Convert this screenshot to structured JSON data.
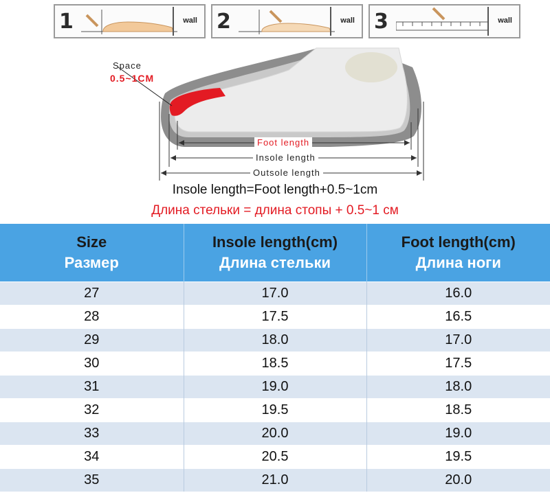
{
  "steps": [
    {
      "number": "1",
      "wall_label": "wall"
    },
    {
      "number": "2",
      "wall_label": "wall"
    },
    {
      "number": "3",
      "wall_label": "wall"
    }
  ],
  "diagram": {
    "space_label": "Space",
    "space_value": "0.5~1CM",
    "foot_length_label": "Foot length",
    "insole_length_label": "Insole length",
    "outsole_length_label": "Outsole length"
  },
  "formula": {
    "english": "Insole length=Foot length+0.5~1cm",
    "russian": "Длина стельки = длина стопы + 0.5~1 см"
  },
  "table": {
    "headers": [
      {
        "en": "Size",
        "ru": "Размер"
      },
      {
        "en": "Insole length(cm)",
        "ru": "Длина стельки"
      },
      {
        "en": "Foot length(cm)",
        "ru": "Длина ноги"
      }
    ],
    "rows": [
      [
        "27",
        "17.0",
        "16.0"
      ],
      [
        "28",
        "17.5",
        "16.5"
      ],
      [
        "29",
        "18.0",
        "17.0"
      ],
      [
        "30",
        "18.5",
        "17.5"
      ],
      [
        "31",
        "19.0",
        "18.0"
      ],
      [
        "32",
        "19.5",
        "18.5"
      ],
      [
        "33",
        "20.0",
        "19.0"
      ],
      [
        "34",
        "20.5",
        "19.5"
      ],
      [
        "35",
        "21.0",
        "20.0"
      ]
    ]
  },
  "colors": {
    "header_bg": "#4aa3e3",
    "row_alt_bg": "#dbe5f1",
    "accent_red": "#e31b23",
    "foot_color": "#f0c896"
  }
}
